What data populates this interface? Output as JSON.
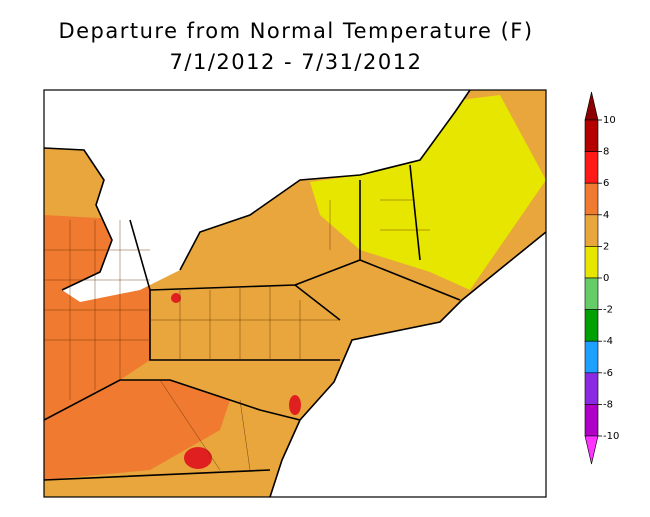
{
  "title": "Departure from Normal Temperature (F)",
  "subtitle": "7/1/2012 - 7/31/2012",
  "colorbar": {
    "ticks": [
      10,
      8,
      6,
      4,
      2,
      0,
      -2,
      -4,
      -6,
      -8,
      -10
    ],
    "colors": [
      "#8b0000",
      "#b40000",
      "#ff1a1a",
      "#f07a30",
      "#e8a63c",
      "#e6e600",
      "#66cc66",
      "#00a000",
      "#1ea0ff",
      "#8a2be2",
      "#b000c8",
      "#ff33ff"
    ]
  }
}
